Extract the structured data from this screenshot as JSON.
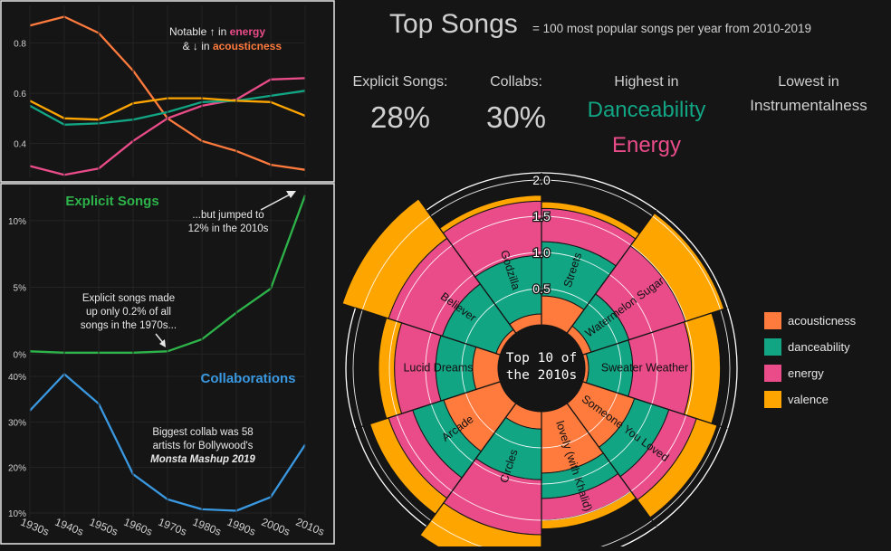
{
  "colors": {
    "background": "#151515",
    "panel_border": "#e8e8e8",
    "acousticness": "#ff7a3d",
    "danceability": "#12a584",
    "energy": "#ea4c89",
    "valence": "#ffa500",
    "explicit": "#2db34a",
    "collab": "#3a98e0"
  },
  "panels": {
    "panel1_note": {
      "l1_prefix": "Notable ↑ in ",
      "l1_highlight": "energy",
      "l2_prefix": "& ↓ in ",
      "l2_highlight": "acousticness"
    },
    "panel2_title": "Explicit Songs",
    "panel2_note_low": [
      "Explicit songs made",
      "up only 0.2% of all",
      "songs in the 1970s..."
    ],
    "panel2_note_high": [
      "...but jumped to",
      "12% in the 2010s"
    ],
    "panel3_title": "Collaborations",
    "panel3_note": [
      "Biggest collab was 58",
      "artists for Bollywood's"
    ],
    "panel3_note_bold": "Monsta Mashup 2019"
  },
  "header": {
    "title": "Top Songs",
    "subtitle": "= 100 most popular songs per year from 2010-2019"
  },
  "stats": [
    {
      "label": "Explicit Songs:",
      "value": "28%"
    },
    {
      "label": "Collabs:",
      "value": "30%"
    }
  ],
  "highest": {
    "label": "Highest in",
    "items": [
      "Danceability",
      "Energy"
    ]
  },
  "lowest": {
    "label": "Lowest in",
    "items": [
      "Instrumentalness"
    ]
  },
  "center_label": [
    "Top 10 of",
    "the 2010s"
  ],
  "chart_data": [
    {
      "type": "line",
      "x": [
        "1930s",
        "1940s",
        "1950s",
        "1960s",
        "1970s",
        "1980s",
        "1990s",
        "2000s",
        "2010s"
      ],
      "series": [
        {
          "name": "acousticness",
          "values": [
            0.87,
            0.905,
            0.84,
            0.69,
            0.5,
            0.41,
            0.37,
            0.315,
            0.295
          ]
        },
        {
          "name": "energy",
          "values": [
            0.31,
            0.275,
            0.3,
            0.41,
            0.5,
            0.55,
            0.575,
            0.655,
            0.66
          ]
        },
        {
          "name": "danceability",
          "values": [
            0.55,
            0.475,
            0.48,
            0.495,
            0.525,
            0.565,
            0.57,
            0.59,
            0.61
          ]
        },
        {
          "name": "valence",
          "values": [
            0.57,
            0.5,
            0.495,
            0.56,
            0.58,
            0.58,
            0.57,
            0.565,
            0.51
          ]
        }
      ],
      "yticks": [
        "0.4",
        "0.6",
        "0.8"
      ],
      "ylim": [
        0.265,
        0.95
      ]
    },
    {
      "type": "line",
      "x": [
        "1930s",
        "1940s",
        "1950s",
        "1960s",
        "1970s",
        "1980s",
        "1990s",
        "2000s",
        "2010s"
      ],
      "series": [
        {
          "name": "Explicit Songs",
          "values": [
            0.2,
            0.1,
            0.1,
            0.1,
            0.2,
            1.1,
            3.1,
            4.9,
            11.9
          ]
        }
      ],
      "yticks": [
        "0%",
        "5%",
        "10%"
      ],
      "ylim": [
        -1,
        12.5
      ]
    },
    {
      "type": "line",
      "x": [
        "1930s",
        "1940s",
        "1950s",
        "1960s",
        "1970s",
        "1980s",
        "1990s",
        "2000s",
        "2010s"
      ],
      "series": [
        {
          "name": "Collaborations",
          "values": [
            32.5,
            40.5,
            34,
            18.5,
            13,
            10.8,
            10.5,
            13.5,
            25
          ]
        }
      ],
      "yticks": [
        "10%",
        "20%",
        "30%",
        "40%"
      ],
      "ylim": [
        9,
        42
      ]
    },
    {
      "type": "bar",
      "subtype": "stacked-polar",
      "radial_ticks": [
        "0.5",
        "1.0",
        "1.5",
        "2.0"
      ],
      "radial_max": 2.1,
      "categories": [
        "Streets",
        "Watermelon Sugar",
        "Sweater Weather",
        "Someone You Loved",
        "lovely (with Khalid)",
        "Circles",
        "Arcade",
        "Lucid Dreams",
        "Believer",
        "Godzilla"
      ],
      "series": [
        {
          "name": "acousticness",
          "values": [
            0.4,
            0.12,
            0.05,
            0.75,
            0.85,
            0.24,
            0.82,
            0.35,
            0.06,
            0.15
          ]
        },
        {
          "name": "danceability",
          "values": [
            0.75,
            0.55,
            0.61,
            0.5,
            0.35,
            0.7,
            0.45,
            0.51,
            0.78,
            0.81
          ]
        },
        {
          "name": "energy",
          "values": [
            0.46,
            0.82,
            0.81,
            0.4,
            0.3,
            0.76,
            0.35,
            0.57,
            0.78,
            0.75
          ]
        },
        {
          "name": "valence",
          "values": [
            0.09,
            0.56,
            0.4,
            0.3,
            0.12,
            0.55,
            0.27,
            0.22,
            0.67,
            0.08
          ]
        }
      ],
      "legend": [
        "acousticness",
        "danceability",
        "energy",
        "valence"
      ],
      "legend_position": "right"
    }
  ]
}
